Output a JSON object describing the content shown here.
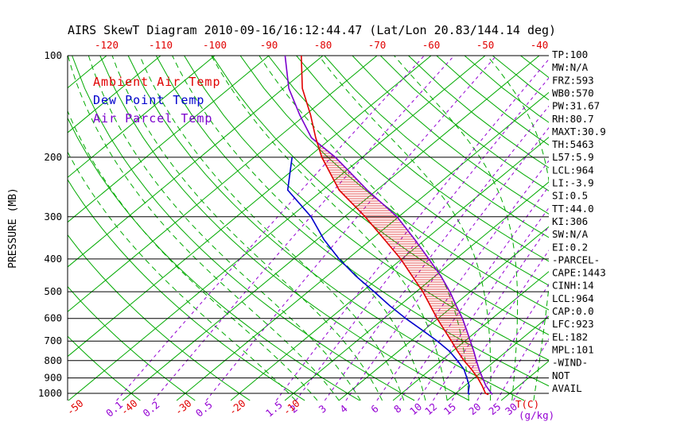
{
  "title": "AIRS SkewT Diagram 2010-09-16/16:12:44.47 (Lat/Lon 20.83/144.14 deg)",
  "legend": {
    "ambient_label": "Ambient Air Temp",
    "dewpoint_label": "Dew Point Temp",
    "parcel_label": "Air Parcel Temp"
  },
  "axes": {
    "pressure_label": "PRESSURE (MB)",
    "temp_unit_label": "T(C)",
    "mixing_unit_label": "(g/kg)",
    "pressure_ticks": [
      100,
      200,
      300,
      400,
      500,
      600,
      700,
      800,
      900,
      1000
    ],
    "top_temp_labels_c": [
      -120,
      -110,
      -100,
      -90,
      -80,
      -70,
      -60,
      -50,
      -40
    ],
    "bottom_temp_labels_c": [
      -50,
      -40,
      -30,
      -20,
      -10
    ],
    "mixing_ratio_labels_g_kg": [
      0.1,
      0.2,
      0.5,
      1.5,
      2,
      3,
      4,
      6,
      8,
      10,
      12,
      15,
      20,
      25,
      30
    ]
  },
  "colors": {
    "background": "#ffffff",
    "axis_text": "#000000",
    "isotherm_green": "#00aa00",
    "mixing_ratio_purple": "#9400d3",
    "temp_red": "#e00000",
    "dewpoint_blue": "#0000cc",
    "parcel_purple": "#7a00cc",
    "hatch_red": "#dd2222"
  },
  "right_panel": {
    "lines": [
      "TP:100",
      "MW:N/A",
      "FRZ:593",
      "WB0:570",
      "PW:31.67",
      "RH:80.7",
      "MAXT:30.9",
      "TH:5463",
      "L57:5.9",
      "LCL:964",
      "LI:-3.9",
      "SI:0.5",
      "TT:44.0",
      "KI:306",
      "SW:N/A",
      "EI:0.2",
      "-PARCEL-",
      "CAPE:1443",
      "CINH:14",
      "LCL:964",
      "CAP:0.0",
      "LFC:923",
      "EL:182",
      "MPL:101",
      "-WIND-",
      "NOT",
      "AVAIL"
    ]
  },
  "chart_data": {
    "type": "line",
    "diagram": "skew-t-log-p",
    "title": "AIRS SkewT Diagram 2010-09-16/16:12:44.47 (Lat/Lon 20.83/144.14 deg)",
    "ylabel": "PRESSURE (MB)",
    "xlabel": "T(C)",
    "log_pressure_axis": true,
    "skew_deg": 45,
    "pressure_range_mb": [
      100,
      1050
    ],
    "isotherms_c": {
      "min": -160,
      "max": 40,
      "step": 10
    },
    "dry_adiabats_theta_c": {
      "min": -40,
      "max": 200,
      "step": 10
    },
    "moist_adiabats_start_c": [
      -8,
      -4,
      0,
      4,
      8,
      12,
      16,
      20,
      24,
      28,
      32,
      36
    ],
    "mixing_ratio_lines_g_kg": [
      0.1,
      0.2,
      0.5,
      1.5,
      2,
      3,
      4,
      6,
      8,
      10,
      12,
      15,
      20,
      25,
      30
    ],
    "levels_mb": [
      1008,
      1000,
      950,
      900,
      850,
      800,
      750,
      700,
      650,
      600,
      550,
      500,
      450,
      400,
      350,
      300,
      250,
      200,
      175,
      150,
      125,
      100
    ],
    "series": [
      {
        "name": "Ambient Air Temp",
        "color_key": "temp_red",
        "temps_c": [
          26.3,
          25.5,
          23.2,
          20.6,
          17.6,
          14.2,
          10.9,
          7.5,
          3.8,
          -0.2,
          -4.3,
          -8.8,
          -14.2,
          -20.2,
          -27.6,
          -36.2,
          -47.0,
          -57.5,
          -63.0,
          -69.0,
          -76.5,
          -84.0
        ]
      },
      {
        "name": "Dew Point Temp",
        "color_key": "dewpoint_blue",
        "temps_c": [
          22.8,
          22.3,
          20.8,
          18.6,
          16.2,
          13.0,
          9.4,
          4.9,
          -0.3,
          -6.0,
          -11.8,
          -17.8,
          -24.6,
          -31.6,
          -38.8,
          -46.2,
          -56.5,
          -63.0,
          null,
          null,
          null,
          null
        ]
      },
      {
        "name": "Air Parcel Temp",
        "color_key": "parcel_purple",
        "temps_c": [
          27.0,
          26.6,
          23.9,
          21.5,
          19.0,
          16.5,
          13.9,
          11.0,
          7.9,
          4.5,
          0.5,
          -3.8,
          -8.9,
          -15.0,
          -22.0,
          -30.3,
          -41.8,
          -55.0,
          -63.8,
          -71.0,
          -79.0,
          -87.0
        ]
      }
    ],
    "cape_hatch_pressure_range_mb": [
      923,
      182
    ],
    "indices": {
      "CAPE": 1443,
      "CINH": 14,
      "LCL": 964,
      "LFC": 923,
      "EL": 182,
      "MPL": 101,
      "LI": -3.9,
      "SI": 0.5,
      "TT": 44.0,
      "KI": 306,
      "PW": 31.67,
      "RH": 80.7,
      "MAXT": 30.9,
      "FRZ": 593
    }
  }
}
